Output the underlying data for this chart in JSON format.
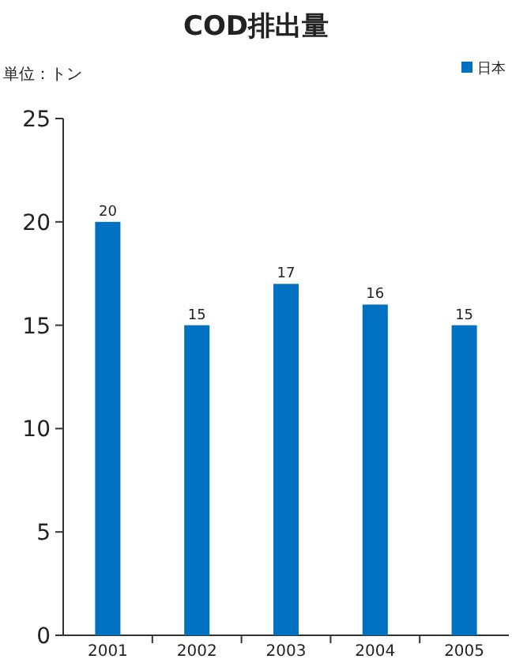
{
  "chart_data": {
    "type": "bar",
    "title": "COD排出量",
    "ylabel": "単位：トン",
    "categories": [
      "2001",
      "2002",
      "2003",
      "2004",
      "2005"
    ],
    "series": [
      {
        "name": "日本",
        "color": "#0070c0",
        "values": [
          20,
          15,
          17,
          16,
          15
        ]
      }
    ],
    "ylim": [
      0,
      25
    ],
    "yticks": [
      0,
      5,
      10,
      15,
      20,
      25
    ],
    "data_labels": true,
    "legend": "top right",
    "grid": false
  }
}
